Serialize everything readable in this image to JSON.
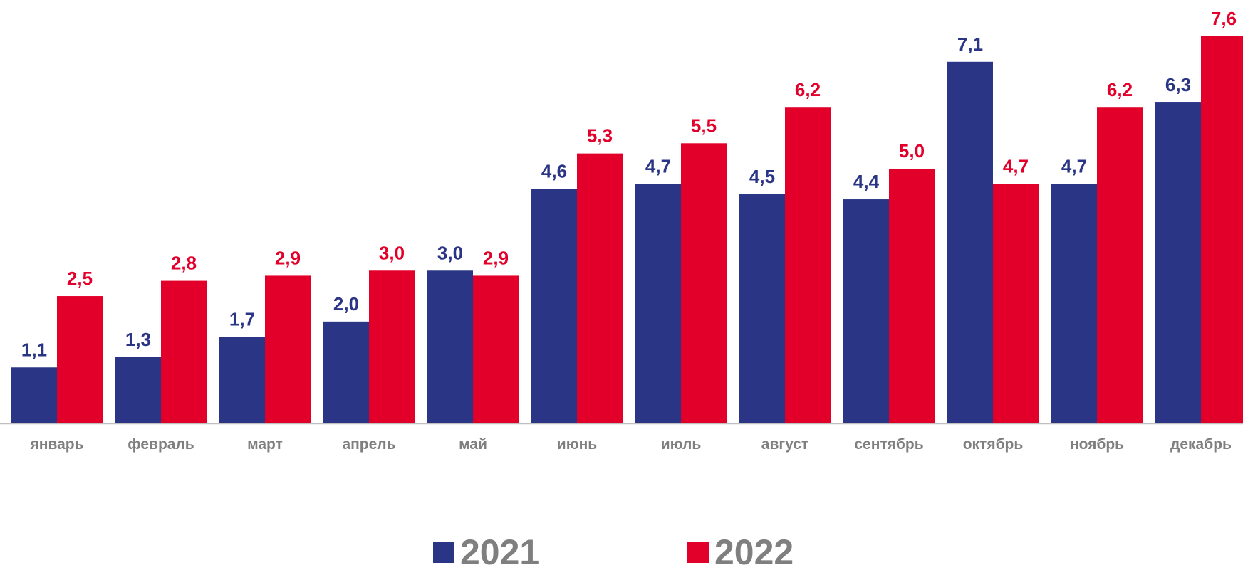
{
  "chart_data": {
    "type": "bar",
    "categories": [
      "январь",
      "февраль",
      "март",
      "апрель",
      "май",
      "июнь",
      "июль",
      "август",
      "сентябрь",
      "октябрь",
      "ноябрь",
      "декабрь"
    ],
    "series": [
      {
        "name": "2021",
        "color": "#2b3585",
        "values": [
          1.1,
          1.3,
          1.7,
          2.0,
          3.0,
          4.6,
          4.7,
          4.5,
          4.4,
          7.1,
          4.7,
          6.3
        ],
        "labels": [
          "1,1",
          "1,3",
          "1,7",
          "2,0",
          "3,0",
          "4,6",
          "4,7",
          "4,5",
          "4,4",
          "7,1",
          "4,7",
          "6,3"
        ]
      },
      {
        "name": "2022",
        "color": "#e2002a",
        "values": [
          2.5,
          2.8,
          2.9,
          3.0,
          2.9,
          5.3,
          5.5,
          6.2,
          5.0,
          4.7,
          6.2,
          7.6
        ],
        "labels": [
          "2,5",
          "2,8",
          "2,9",
          "3,0",
          "2,9",
          "5,3",
          "5,5",
          "6,2",
          "5,0",
          "4,7",
          "6,2",
          "7,6"
        ]
      }
    ],
    "ylim": [
      0,
      7.6
    ],
    "grid": false,
    "legend_position": "bottom-center",
    "category_label_color": "#7f7f7f",
    "axis_color": "#bfbfbf"
  }
}
